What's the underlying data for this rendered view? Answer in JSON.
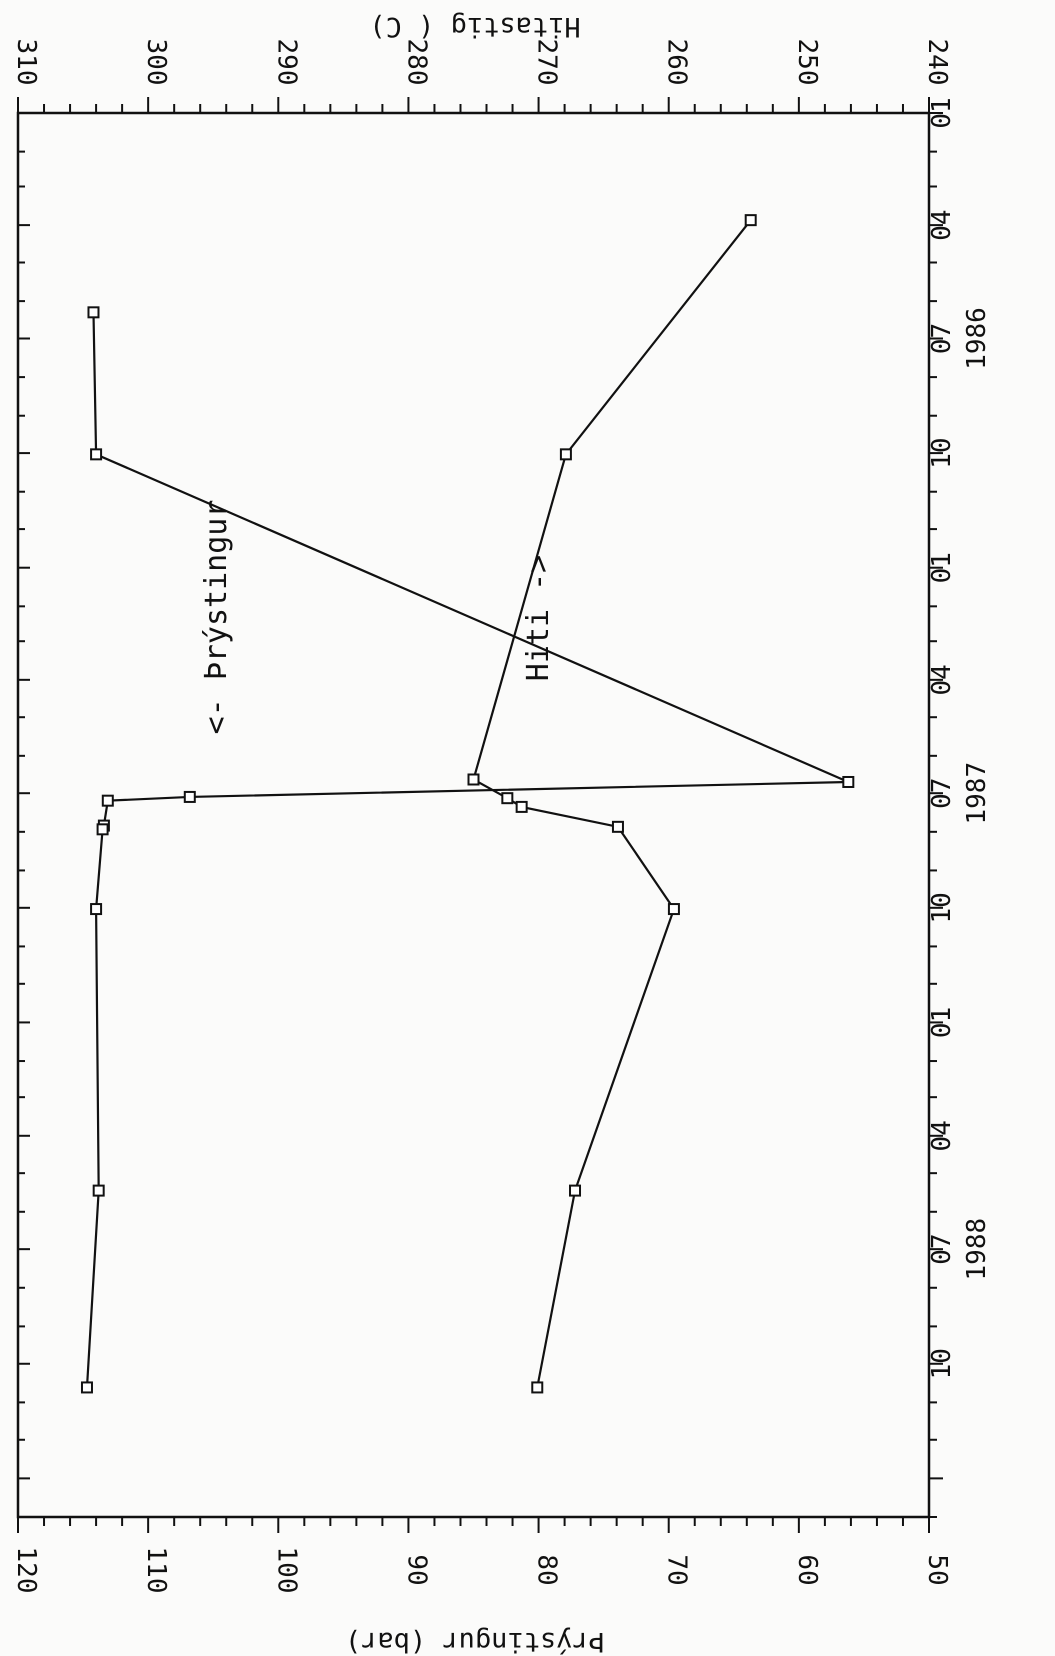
{
  "chart_data": {
    "type": "line",
    "orientation": "rotated 90 degrees clockwise (time axis runs top to bottom)",
    "x_tick_labels": [
      "01",
      "04",
      "07",
      "10",
      "01",
      "04",
      "07",
      "10",
      "01",
      "04",
      "07",
      "10"
    ],
    "x_year_labels": [
      "1986",
      "1987",
      "1988"
    ],
    "x_range": [
      "1986-01-01",
      "1989-02-01"
    ],
    "left_axis": {
      "title": "Þrýstingur     (bar)",
      "ylim": [
        50,
        120
      ],
      "ticks": [
        "120",
        "110",
        "100",
        "90",
        "80",
        "70",
        "60",
        "50"
      ]
    },
    "right_axis": {
      "title": "Hitastig    ( C)",
      "ylim": [
        240,
        310
      ],
      "ticks": [
        "310",
        "300",
        "290",
        "280",
        "270",
        "260",
        "250",
        "240"
      ]
    },
    "series": [
      {
        "axis": "left",
        "x": [
          "1986-06-10",
          "1986-10-02",
          "1987-06-22",
          "1987-07-04",
          "1987-07-07",
          "1987-07-27",
          "1987-07-30",
          "1987-10-02",
          "1988-05-15",
          "1988-10-20"
        ],
        "values": [
          114.2,
          114.0,
          56.2,
          106.8,
          113.1,
          113.4,
          113.5,
          114.0,
          113.8,
          114.7
        ]
      },
      {
        "axis": "right",
        "x": [
          "1986-03-28",
          "1986-10-02",
          "1987-06-20",
          "1987-07-05",
          "1987-07-12",
          "1987-07-28",
          "1987-10-02",
          "1988-05-15",
          "1988-10-20"
        ],
        "values": [
          253.7,
          267.9,
          275.0,
          272.4,
          271.3,
          263.9,
          259.6,
          267.2,
          270.1
        ]
      }
    ],
    "annotations": [
      "<- Þrýstingur",
      "Hiti ->"
    ],
    "grid": false
  }
}
